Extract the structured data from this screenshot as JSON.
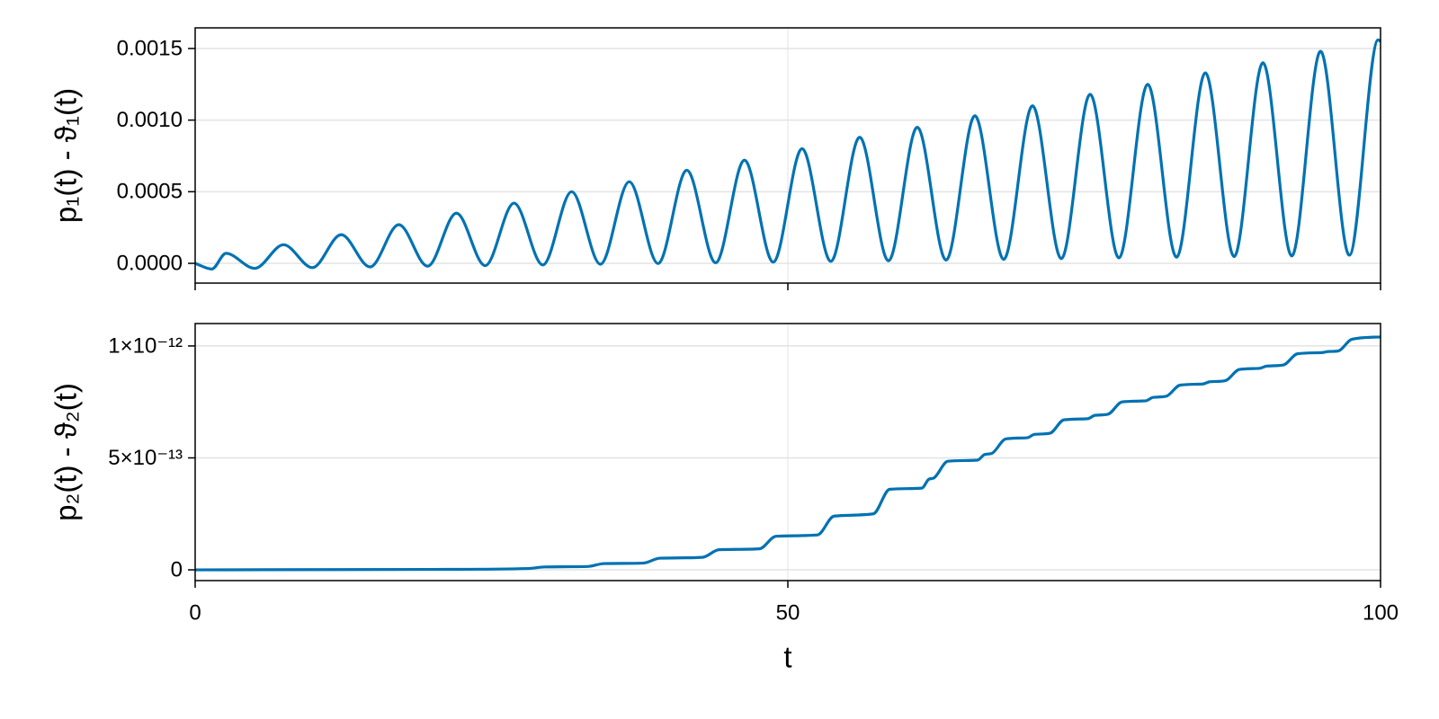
{
  "chart_data": [
    {
      "type": "line",
      "ylabel": "p₁(t) - ϑ₁(t)",
      "x": [
        0,
        1.4,
        2.6,
        5.03,
        7.46,
        9.89,
        12.32,
        14.75,
        17.18,
        19.61,
        22.04,
        24.47,
        26.9,
        29.33,
        31.76,
        34.19,
        36.62,
        39.05,
        41.48,
        43.91,
        46.34,
        48.77,
        51.2,
        53.63,
        56.06,
        58.49,
        60.92,
        63.35,
        65.78,
        68.21,
        70.64,
        73.07,
        75.5,
        77.93,
        80.36,
        82.79,
        85.22,
        87.65,
        90.08,
        92.51,
        94.94,
        97.37,
        99.8,
        100
      ],
      "series": [
        {
          "color": "#0072b2",
          "values": [
            0,
            -4e-05,
            7e-05,
            -3.5e-05,
            0.00013,
            -3e-05,
            0.0002,
            -2.5e-05,
            0.00027,
            -2e-05,
            0.00035,
            -1.6e-05,
            0.00042,
            -1.1e-05,
            0.0005,
            -6e-06,
            0.00057,
            -1e-06,
            0.00065,
            4e-06,
            0.00072,
            9e-06,
            0.0008,
            1.4e-05,
            0.00088,
            1.8e-05,
            0.00095,
            2.3e-05,
            0.00103,
            2.8e-05,
            0.0011,
            3.3e-05,
            0.00118,
            3.8e-05,
            0.00125,
            4.3e-05,
            0.00133,
            4.8e-05,
            0.0014,
            5.2e-05,
            0.00148,
            5.7e-05,
            0.00156,
            0.00155
          ]
        }
      ],
      "xlim": [
        0,
        100
      ],
      "xticks": [
        0,
        50,
        100
      ],
      "ylim": [
        -0.000138,
        0.001644
      ],
      "yticks": [
        {
          "value": 0,
          "label": "0.0000"
        },
        {
          "value": 0.0005,
          "label": "0.0005"
        },
        {
          "value": 0.001,
          "label": "0.0010"
        },
        {
          "value": 0.0015,
          "label": "0.0015"
        }
      ],
      "grid": true
    },
    {
      "type": "line",
      "ylabel": "p₂(t) - ϑ₂(t)",
      "xlabel": "t",
      "x": [
        0,
        20,
        28.1,
        29.5,
        33.1,
        34.5,
        37.8,
        39.2,
        42.8,
        44.2,
        47.6,
        49,
        52.5,
        53.9,
        57.2,
        58.6,
        61.3,
        61.9,
        62.3,
        63.5,
        66,
        66.6,
        67.2,
        68.4,
        70.2,
        70.8,
        72.1,
        73.3,
        75.3,
        75.9,
        77,
        78.2,
        80.2,
        80.8,
        81.9,
        83.1,
        85,
        85.6,
        86.9,
        88.1,
        89.8,
        90.4,
        91.8,
        93,
        95,
        95.6,
        96.4,
        97.6,
        100
      ],
      "series": [
        {
          "color": "#0072b2",
          "values": [
            0,
            2e-15,
            6e-15,
            1.3e-14,
            1.5e-14,
            2.8e-14,
            3e-14,
            5.2e-14,
            5.6e-14,
            9e-14,
            9.4e-14,
            1.5e-13,
            1.56e-13,
            2.4e-13,
            2.5e-13,
            3.6e-13,
            3.65e-13,
            4.05e-13,
            4.1e-13,
            4.85e-13,
            4.9e-13,
            5.15e-13,
            5.2e-13,
            5.85e-13,
            5.9e-13,
            6.05e-13,
            6.1e-13,
            6.7e-13,
            6.75e-13,
            6.9e-13,
            6.95e-13,
            7.5e-13,
            7.55e-13,
            7.7e-13,
            7.75e-13,
            8.25e-13,
            8.3e-13,
            8.4e-13,
            8.45e-13,
            8.95e-13,
            9e-13,
            9.1e-13,
            9.15e-13,
            9.65e-13,
            9.7e-13,
            9.75e-13,
            9.77e-13,
            1.03e-12,
            1.04e-12
          ]
        }
      ],
      "xlim": [
        0,
        100
      ],
      "xticks": [
        0,
        50,
        100
      ],
      "ylim": [
        -4.8e-14,
        1.1e-12
      ],
      "yticks": [
        0,
        {
          "value": 5e-13,
          "label": "5×10⁻¹³"
        },
        {
          "value": 1e-12,
          "label": "1×10⁻¹²"
        }
      ],
      "grid": true
    }
  ]
}
